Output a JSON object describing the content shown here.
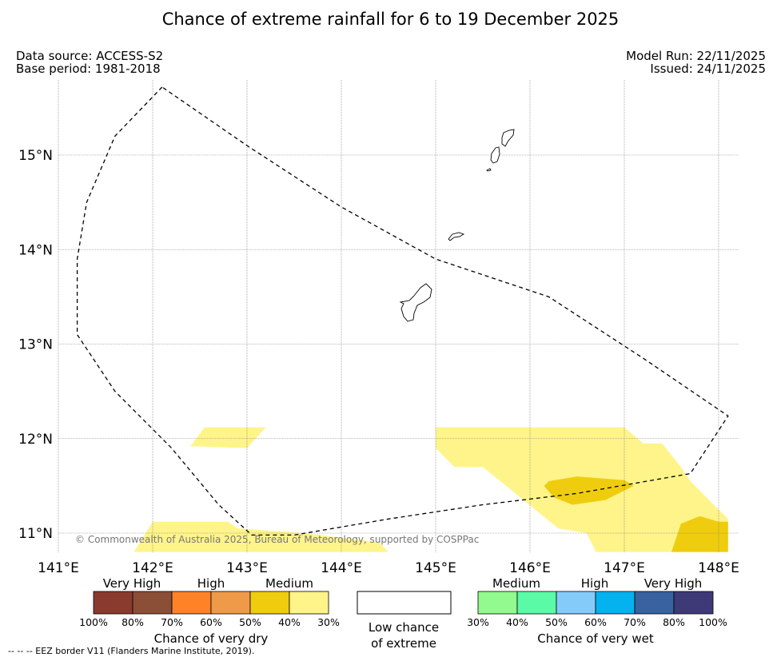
{
  "title": "Chance of extreme rainfall for 6 to 19 December 2025",
  "meta": {
    "data_source": "Data source: ACCESS-S2",
    "base_period": "Base period: 1981-2018",
    "model_run": "Model Run: 22/11/2025",
    "issued": "Issued: 24/11/2025"
  },
  "map": {
    "lon_range": [
      141.0,
      148.1
    ],
    "lat_range": [
      10.8,
      15.8
    ],
    "lon_ticks": [
      {
        "value": 141,
        "label": "141°E"
      },
      {
        "value": 142,
        "label": "142°E"
      },
      {
        "value": 143,
        "label": "143°E"
      },
      {
        "value": 144,
        "label": "144°E"
      },
      {
        "value": 145,
        "label": "145°E"
      },
      {
        "value": 146,
        "label": "146°E"
      },
      {
        "value": 147,
        "label": "147°E"
      },
      {
        "value": 148,
        "label": "148°E"
      }
    ],
    "lat_ticks": [
      {
        "value": 11,
        "label": "11°N"
      },
      {
        "value": 12,
        "label": "12°N"
      },
      {
        "value": 13,
        "label": "13°N"
      },
      {
        "value": 14,
        "label": "14°N"
      },
      {
        "value": 15,
        "label": "15°N"
      }
    ],
    "copyright": "© Commonwealth of Australia 2025, Bureau of Meteorology, supported by COSPPac",
    "islands": [
      "Guam",
      "Rota",
      "Tinian",
      "Saipan"
    ],
    "eez_border": [
      [
        142.1,
        15.72
      ],
      [
        141.6,
        15.2
      ],
      [
        141.3,
        14.5
      ],
      [
        141.2,
        13.9
      ],
      [
        141.2,
        13.1
      ],
      [
        141.6,
        12.5
      ],
      [
        142.2,
        11.9
      ],
      [
        142.7,
        11.3
      ],
      [
        143.05,
        10.98
      ],
      [
        143.5,
        10.98
      ],
      [
        144.5,
        11.15
      ],
      [
        145.5,
        11.3
      ],
      [
        146.5,
        11.42
      ],
      [
        147.7,
        11.63
      ],
      [
        148.1,
        12.24
      ],
      [
        147.2,
        12.85
      ],
      [
        146.2,
        13.5
      ],
      [
        145,
        13.9
      ],
      [
        144,
        14.45
      ],
      [
        143,
        15.1
      ],
      [
        142.1,
        15.72
      ]
    ],
    "areas": [
      {
        "category": "Medium dry",
        "color": "#fef48a",
        "poly": [
          [
            142.55,
            12.12
          ],
          [
            143.2,
            12.12
          ],
          [
            143.0,
            11.9
          ],
          [
            142.4,
            11.92
          ]
        ]
      },
      {
        "category": "Medium dry",
        "color": "#fef48a",
        "poly": [
          [
            141.8,
            10.8
          ],
          [
            142.0,
            11.12
          ],
          [
            142.8,
            11.12
          ],
          [
            142.9,
            11.05
          ],
          [
            143.6,
            11.0
          ],
          [
            144.4,
            10.9
          ],
          [
            144.5,
            10.8
          ]
        ]
      },
      {
        "category": "Medium dry",
        "color": "#fef48a",
        "poly": [
          [
            145.0,
            12.12
          ],
          [
            147.0,
            12.12
          ],
          [
            147.2,
            11.95
          ],
          [
            147.4,
            11.95
          ],
          [
            147.6,
            11.7
          ],
          [
            147.7,
            11.55
          ],
          [
            148.1,
            11.15
          ],
          [
            148.1,
            10.8
          ],
          [
            146.7,
            10.8
          ],
          [
            146.6,
            11.0
          ],
          [
            146.3,
            11.05
          ],
          [
            145.5,
            11.7
          ],
          [
            145.2,
            11.7
          ],
          [
            145.0,
            11.9
          ]
        ]
      },
      {
        "category": "Medium-high dry",
        "color": "#efcd0e",
        "poly": [
          [
            146.2,
            11.55
          ],
          [
            146.5,
            11.6
          ],
          [
            147.0,
            11.56
          ],
          [
            147.1,
            11.5
          ],
          [
            146.8,
            11.35
          ],
          [
            146.45,
            11.3
          ],
          [
            146.25,
            11.38
          ],
          [
            146.15,
            11.5
          ]
        ]
      },
      {
        "category": "Medium-high dry",
        "color": "#efcd0e",
        "poly": [
          [
            147.5,
            10.8
          ],
          [
            147.6,
            11.1
          ],
          [
            147.8,
            11.18
          ],
          [
            148.0,
            11.12
          ],
          [
            148.1,
            11.12
          ],
          [
            148.1,
            10.8
          ]
        ]
      }
    ]
  },
  "legend": {
    "dry": {
      "title": "Chance of very dry",
      "categories": [
        "Very High",
        "High",
        "Medium"
      ],
      "colors": [
        "#8b3a2e",
        "#8b4e37",
        "#fe8228",
        "#ef9a48",
        "#efcd0e",
        "#fef48a"
      ],
      "ticks": [
        "100%",
        "80%",
        "70%",
        "60%",
        "50%",
        "40%",
        "30%"
      ]
    },
    "low": {
      "line1": "Low chance",
      "line2": "of extreme"
    },
    "wet": {
      "title": "Chance of very wet",
      "categories": [
        "Medium",
        "High",
        "Very High"
      ],
      "colors": [
        "#92fa8e",
        "#5afaa6",
        "#84cbfa",
        "#04b2ef",
        "#3862a0",
        "#3e3a78"
      ],
      "ticks": [
        "30%",
        "40%",
        "50%",
        "60%",
        "70%",
        "80%",
        "100%"
      ]
    }
  },
  "footnote": "--  --  -- EEZ border V11 (Flanders Marine Institute, 2019)."
}
